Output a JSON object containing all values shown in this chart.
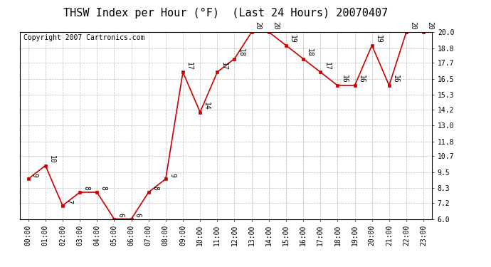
{
  "title": "THSW Index per Hour (°F)  (Last 24 Hours) 20070407",
  "copyright": "Copyright 2007 Cartronics.com",
  "hours": [
    "00:00",
    "01:00",
    "02:00",
    "03:00",
    "04:00",
    "05:00",
    "06:00",
    "07:00",
    "08:00",
    "09:00",
    "10:00",
    "11:00",
    "12:00",
    "13:00",
    "14:00",
    "15:00",
    "16:00",
    "17:00",
    "18:00",
    "19:00",
    "20:00",
    "21:00",
    "22:00",
    "23:00"
  ],
  "values": [
    9,
    10,
    7,
    8,
    8,
    6,
    6,
    8,
    9,
    17,
    14,
    17,
    18,
    20,
    20,
    19,
    18,
    17,
    16,
    16,
    19,
    16,
    20,
    20
  ],
  "ylim": [
    6.0,
    20.0
  ],
  "yticks": [
    6.0,
    7.2,
    8.3,
    9.5,
    10.7,
    11.8,
    13.0,
    14.2,
    15.3,
    16.5,
    17.7,
    18.8,
    20.0
  ],
  "line_color": "#cc0000",
  "marker_color": "#cc0000",
  "bg_color": "#ffffff",
  "grid_color": "#aaaaaa",
  "title_fontsize": 11,
  "label_fontsize": 7,
  "copyright_fontsize": 7,
  "data_label_fontsize": 7
}
